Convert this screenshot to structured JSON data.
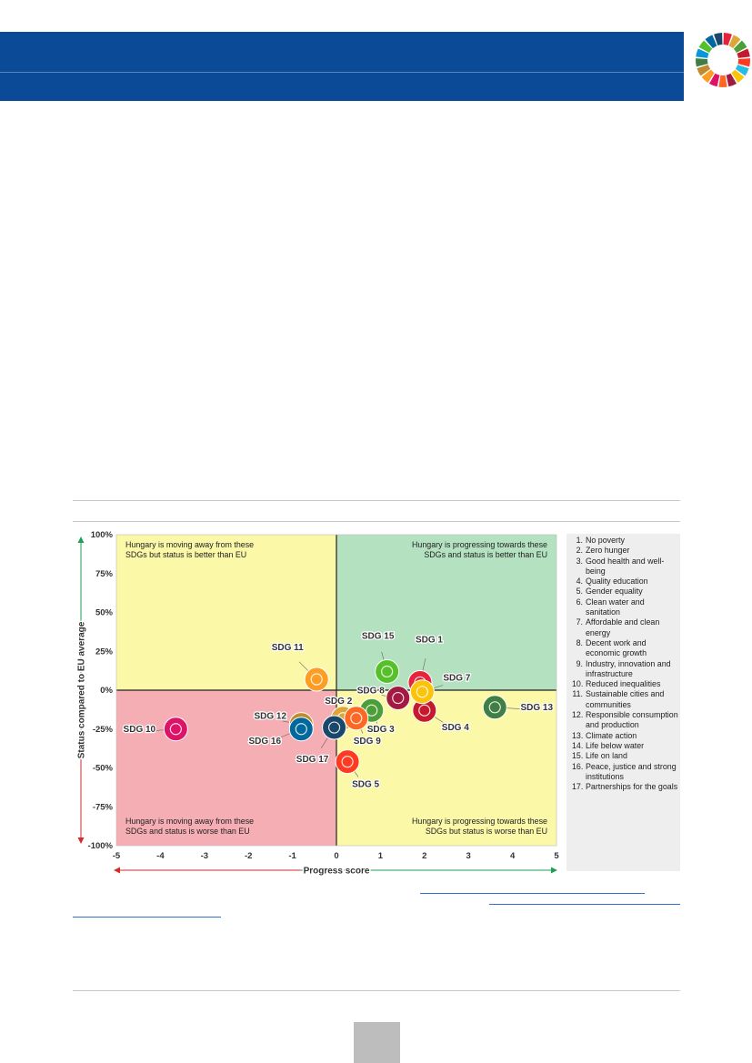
{
  "header": {
    "accent": "#0b4a96",
    "sdg_wheel_colors": [
      "#e5243b",
      "#dda63a",
      "#4c9f38",
      "#c5192d",
      "#ff3a21",
      "#26bde2",
      "#fcc30b",
      "#a21942",
      "#fd6925",
      "#dd1367",
      "#fd9d24",
      "#bf8b2e",
      "#3f7e44",
      "#0a97d9",
      "#56c02b",
      "#00689d",
      "#19486a"
    ]
  },
  "chart_data": {
    "type": "scatter",
    "xlabel": "Progress score",
    "ylabel": "Status compared to EU average",
    "xlim": [
      -5,
      5
    ],
    "ylim": [
      -100,
      100
    ],
    "x_ticks": [
      -5,
      -4,
      -3,
      -2,
      -1,
      0,
      1,
      2,
      3,
      4,
      5
    ],
    "y_ticks": [
      100,
      75,
      50,
      25,
      0,
      -25,
      -50,
      -75,
      -100
    ],
    "y_tick_labels": [
      "100%",
      "75%",
      "50%",
      "25%",
      "0%",
      "-25%",
      "-50%",
      "-75%",
      "-100%"
    ],
    "quadrants": {
      "top_left": {
        "text": [
          "Hungary is moving away from these",
          "SDGs but status is better than EU"
        ],
        "color": "#fbf8a8"
      },
      "top_right": {
        "text": [
          "Hungary is progressing towards these",
          "SDGs and status is better than EU"
        ],
        "color": "#b4e2c0"
      },
      "bottom_left": {
        "text": [
          "Hungary is moving away from these",
          "SDGs and status is worse than EU"
        ],
        "color": "#f5aeb4"
      },
      "bottom_right": {
        "text": [
          "Hungary is progressing towards these",
          "SDGs but status is worse than EU"
        ],
        "color": "#fbf8a8"
      }
    },
    "points": [
      {
        "label": "SDG 1",
        "x": 1.9,
        "y": 5,
        "color": "#e5243b"
      },
      {
        "label": "SDG 2",
        "x": 0.15,
        "y": -18,
        "color": "#dda63a"
      },
      {
        "label": "SDG 3",
        "x": 0.8,
        "y": -13,
        "color": "#4c9f38"
      },
      {
        "label": "SDG 4",
        "x": 2.0,
        "y": -13,
        "color": "#c5192d"
      },
      {
        "label": "SDG 5",
        "x": 0.25,
        "y": -46,
        "color": "#ff3a21"
      },
      {
        "label": "SDG 7",
        "x": 1.95,
        "y": -1,
        "color": "#fcc30b"
      },
      {
        "label": "SDG 8",
        "x": 1.4,
        "y": -5,
        "color": "#a21942"
      },
      {
        "label": "SDG 9",
        "x": 0.45,
        "y": -18,
        "color": "#fd6925"
      },
      {
        "label": "SDG 10",
        "x": -3.65,
        "y": -25,
        "color": "#dd1367"
      },
      {
        "label": "SDG 11",
        "x": -0.45,
        "y": 7,
        "color": "#fd9d24"
      },
      {
        "label": "SDG 12",
        "x": -0.8,
        "y": -22,
        "color": "#bf8b2e"
      },
      {
        "label": "SDG 13",
        "x": 3.6,
        "y": -11,
        "color": "#3f7e44"
      },
      {
        "label": "SDG 15",
        "x": 1.15,
        "y": 12,
        "color": "#56c02b"
      },
      {
        "label": "SDG 16",
        "x": -0.8,
        "y": -25,
        "color": "#00689d"
      },
      {
        "label": "SDG 17",
        "x": -0.05,
        "y": -24,
        "color": "#19486a"
      }
    ],
    "legend": [
      "No poverty",
      "Zero hunger",
      "Good health and well-being",
      "Quality education",
      "Gender equality",
      "Clean water and sanitation",
      "Affordable and clean energy",
      "Decent work and economic growth",
      "Industry, innovation and infrastructure",
      "Reduced inequalities",
      "Sustainable cities and communities",
      "Responsible consumption and production",
      "Climate action",
      "Life below water",
      "Life on land",
      "Peace, justice and strong institutions",
      "Partnerships for the goals"
    ]
  }
}
